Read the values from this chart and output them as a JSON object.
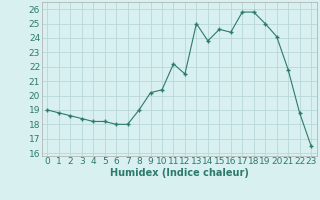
{
  "x": [
    0,
    1,
    2,
    3,
    4,
    5,
    6,
    7,
    8,
    9,
    10,
    11,
    12,
    13,
    14,
    15,
    16,
    17,
    18,
    19,
    20,
    21,
    22,
    23
  ],
  "y": [
    19.0,
    18.8,
    18.6,
    18.4,
    18.2,
    18.2,
    18.0,
    18.0,
    19.0,
    20.2,
    20.4,
    22.2,
    21.5,
    25.0,
    23.8,
    24.6,
    24.4,
    25.8,
    25.8,
    25.0,
    24.1,
    21.8,
    18.8,
    16.5
  ],
  "xlabel": "Humidex (Indice chaleur)",
  "xlim": [
    -0.5,
    23.5
  ],
  "ylim": [
    15.8,
    26.5
  ],
  "yticks": [
    16,
    17,
    18,
    19,
    20,
    21,
    22,
    23,
    24,
    25,
    26
  ],
  "xticks": [
    0,
    1,
    2,
    3,
    4,
    5,
    6,
    7,
    8,
    9,
    10,
    11,
    12,
    13,
    14,
    15,
    16,
    17,
    18,
    19,
    20,
    21,
    22,
    23
  ],
  "line_color": "#2d7a6a",
  "marker": "+",
  "bg_color": "#d8f0f0",
  "grid_color": "#b8d8d8",
  "label_fontsize": 7,
  "tick_fontsize": 6.5
}
